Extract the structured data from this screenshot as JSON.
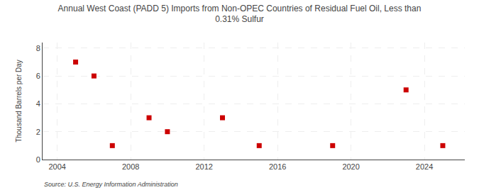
{
  "chart_data": {
    "type": "scatter",
    "title": "Annual West Coast (PADD 5) Imports from Non-OPEC Countries of Residual Fuel Oil, Less than\n0.31% Sulfur",
    "ylabel": "Thousand Barrels per Day",
    "annotations": [
      "Source: U.S. Energy Information Administration"
    ],
    "x": [
      2005,
      2006,
      2007,
      2009,
      2010,
      2013,
      2015,
      2019,
      2023,
      2025
    ],
    "values": [
      7,
      6,
      1,
      3,
      2,
      3,
      1,
      1,
      5,
      1
    ],
    "color": "#cc0000",
    "marker": "square",
    "xlim": [
      2003.2,
      2026.2
    ],
    "ylim": [
      0,
      8.4
    ],
    "xticks": [
      2004,
      2008,
      2012,
      2016,
      2020,
      2024
    ],
    "yticks": [
      0,
      2,
      4,
      6,
      8
    ],
    "grid": true
  }
}
